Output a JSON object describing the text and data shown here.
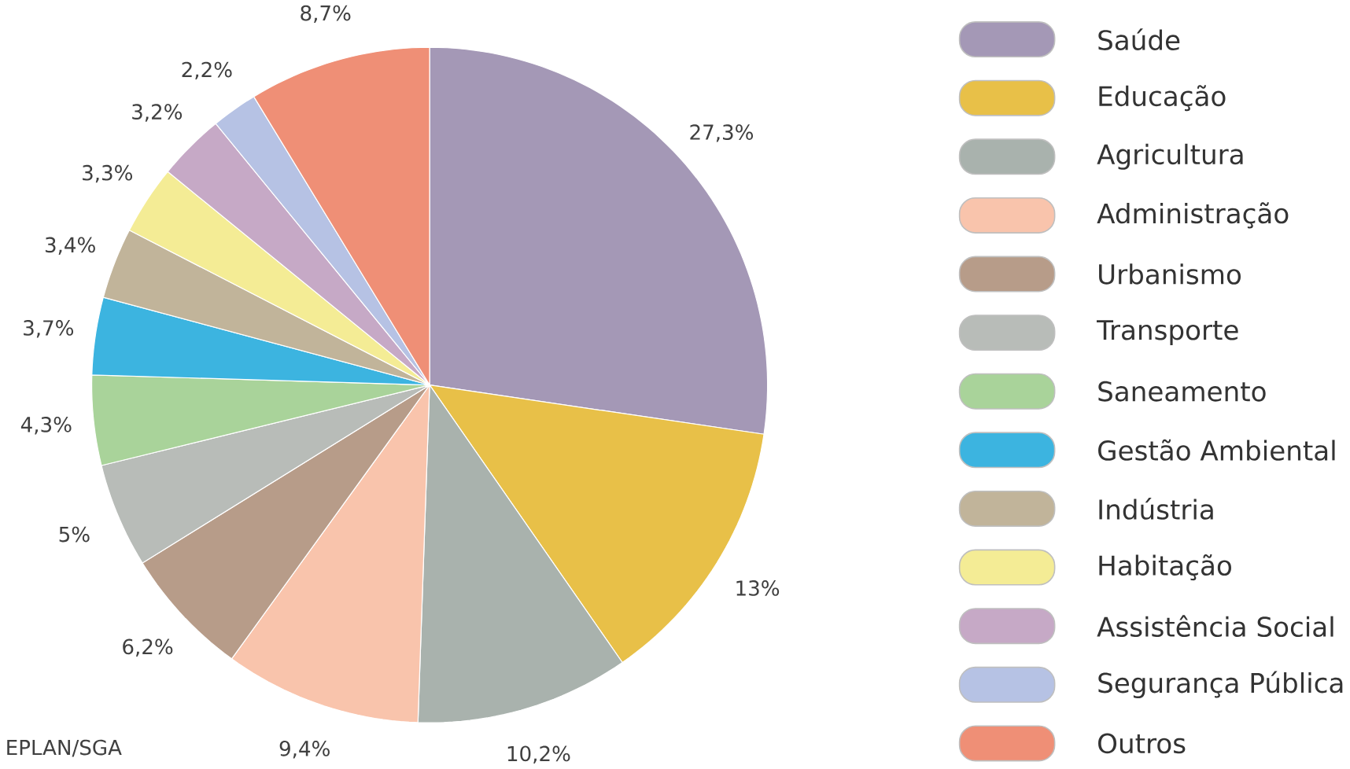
{
  "chart_data": {
    "type": "pie",
    "categories": [
      "Saúde",
      "Educação",
      "Agricultura",
      "Administração",
      "Urbanismo",
      "Transporte",
      "Saneamento",
      "Gestão Ambiental",
      "Indústria",
      "Habitação",
      "Assistência Social",
      "Segurança Pública",
      "Outros"
    ],
    "values": [
      27.3,
      13,
      10.2,
      9.4,
      6.2,
      5,
      4.3,
      3.7,
      3.4,
      3.3,
      3.2,
      2.2,
      8.7
    ],
    "value_labels": [
      "27,3%",
      "13%",
      "10,2%",
      "9,4%",
      "6,2%",
      "5%",
      "4,3%",
      "3,7%",
      "3,4%",
      "3,3%",
      "3,2%",
      "2,2%",
      "8,7%"
    ],
    "colors": [
      "#a498b6",
      "#e8c048",
      "#a9b2ad",
      "#f9c4ac",
      "#b79c89",
      "#b8bcb8",
      "#a9d39a",
      "#3cb4e0",
      "#c1b49a",
      "#f4ec95",
      "#c6a9c6",
      "#b6c2e4",
      "#ef8f76"
    ],
    "legend": "right",
    "annotations": [
      "EPLAN/SGA"
    ]
  }
}
